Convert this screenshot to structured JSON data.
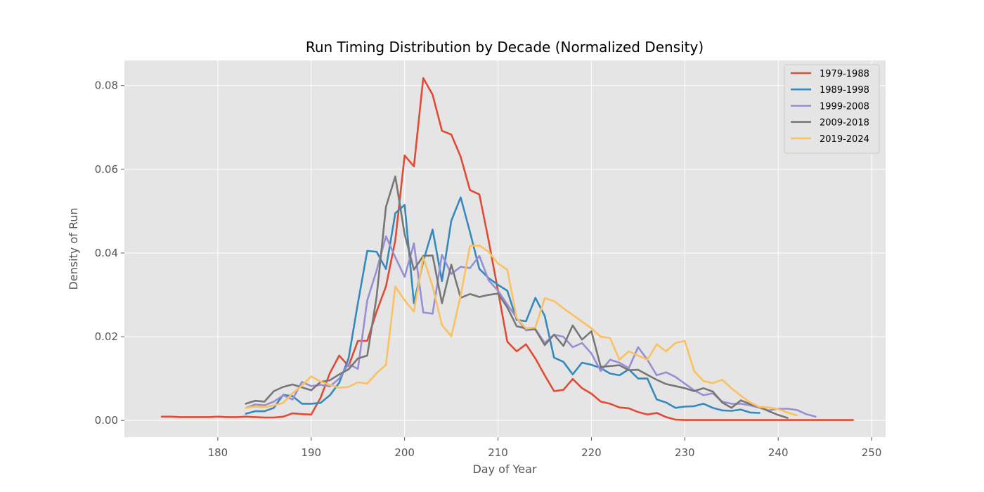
{
  "chart_data": {
    "type": "line",
    "title": "Run Timing Distribution by Decade (Normalized Density)",
    "xlabel": "Day of Year",
    "ylabel": "Density of Run",
    "xlim": [
      170,
      251.5
    ],
    "ylim": [
      -0.004,
      0.086
    ],
    "xticks": [
      180,
      190,
      200,
      210,
      220,
      230,
      240,
      250
    ],
    "yticks": [
      0.0,
      0.02,
      0.04,
      0.06,
      0.08
    ],
    "ytick_labels": [
      "0.00",
      "0.02",
      "0.04",
      "0.06",
      "0.08"
    ],
    "grid": true,
    "legend_position": "top-right",
    "series": [
      {
        "name": "1979-1988",
        "color": "#E24A33",
        "x": [
          174,
          175,
          176,
          177,
          178,
          179,
          180,
          181,
          182,
          183,
          184,
          185,
          186,
          187,
          188,
          189,
          190,
          191,
          192,
          193,
          194,
          195,
          196,
          197,
          198,
          199,
          200,
          201,
          202,
          203,
          204,
          205,
          206,
          207,
          208,
          209,
          210,
          211,
          212,
          213,
          214,
          215,
          216,
          217,
          218,
          219,
          220,
          221,
          222,
          223,
          224,
          225,
          226,
          227,
          228,
          229,
          230,
          231,
          232,
          233,
          234,
          235,
          236,
          237,
          238,
          239,
          240,
          241,
          242,
          243,
          244,
          245,
          246,
          247,
          248
        ],
        "y": [
          0.0009,
          0.0009,
          0.0008,
          0.0008,
          0.0008,
          0.0008,
          0.0009,
          0.0008,
          0.0008,
          0.0009,
          0.0008,
          0.0007,
          0.0007,
          0.0009,
          0.0017,
          0.0015,
          0.0014,
          0.0054,
          0.0113,
          0.0155,
          0.013,
          0.019,
          0.019,
          0.026,
          0.032,
          0.043,
          0.0633,
          0.0607,
          0.0818,
          0.0778,
          0.0692,
          0.0683,
          0.063,
          0.055,
          0.054,
          0.043,
          0.031,
          0.0188,
          0.0165,
          0.0182,
          0.0148,
          0.0108,
          0.007,
          0.0073,
          0.0099,
          0.0077,
          0.0064,
          0.0045,
          0.004,
          0.0031,
          0.0029,
          0.002,
          0.0014,
          0.0018,
          0.0008,
          0.0002,
          0.0001,
          0.0001,
          0.0001,
          0.0001,
          0.0001,
          0.0001,
          0.0001,
          0.0001,
          0.0001,
          0.0001,
          0.0001,
          0.0001,
          0.0001,
          0.0001,
          0.0001,
          0.0001,
          0.0001,
          0.0001,
          0.0001
        ]
      },
      {
        "name": "1989-1998",
        "color": "#348ABD",
        "x": [
          183,
          184,
          185,
          186,
          187,
          188,
          189,
          190,
          191,
          192,
          193,
          194,
          195,
          196,
          197,
          198,
          199,
          200,
          201,
          202,
          203,
          204,
          205,
          206,
          207,
          208,
          209,
          210,
          211,
          212,
          213,
          214,
          215,
          216,
          217,
          218,
          219,
          220,
          221,
          222,
          223,
          224,
          225,
          226,
          227,
          228,
          229,
          230,
          231,
          232,
          233,
          234,
          235,
          236,
          237,
          238
        ],
        "y": [
          0.0016,
          0.0022,
          0.0022,
          0.003,
          0.0061,
          0.0058,
          0.004,
          0.004,
          0.0042,
          0.006,
          0.009,
          0.0148,
          0.028,
          0.0405,
          0.0403,
          0.0362,
          0.0495,
          0.0515,
          0.028,
          0.038,
          0.0456,
          0.0333,
          0.0477,
          0.0533,
          0.045,
          0.0362,
          0.034,
          0.0324,
          0.031,
          0.024,
          0.0237,
          0.0293,
          0.025,
          0.015,
          0.014,
          0.011,
          0.0138,
          0.0133,
          0.0125,
          0.0112,
          0.0108,
          0.0122,
          0.01,
          0.01,
          0.005,
          0.0043,
          0.003,
          0.0033,
          0.0034,
          0.004,
          0.003,
          0.0024,
          0.0023,
          0.0026,
          0.0019,
          0.0018
        ]
      },
      {
        "name": "1999-2008",
        "color": "#988ED5",
        "x": [
          183,
          184,
          185,
          186,
          187,
          188,
          189,
          190,
          191,
          192,
          193,
          194,
          195,
          196,
          197,
          198,
          199,
          200,
          201,
          202,
          203,
          204,
          205,
          206,
          207,
          208,
          209,
          210,
          211,
          212,
          213,
          214,
          215,
          216,
          217,
          218,
          219,
          220,
          221,
          222,
          223,
          224,
          225,
          226,
          227,
          228,
          229,
          230,
          231,
          232,
          233,
          234,
          235,
          236,
          237,
          238,
          239,
          240,
          241,
          242,
          243,
          244
        ],
        "y": [
          0.003,
          0.0038,
          0.0036,
          0.0045,
          0.006,
          0.005,
          0.0092,
          0.0082,
          0.0085,
          0.0081,
          0.01,
          0.0135,
          0.0123,
          0.0287,
          0.0358,
          0.044,
          0.039,
          0.0343,
          0.0423,
          0.0258,
          0.0255,
          0.0396,
          0.035,
          0.0367,
          0.0364,
          0.0393,
          0.0335,
          0.031,
          0.0277,
          0.0245,
          0.0215,
          0.0218,
          0.0185,
          0.0205,
          0.02,
          0.0175,
          0.0185,
          0.016,
          0.0118,
          0.0145,
          0.0138,
          0.0125,
          0.0175,
          0.0145,
          0.0108,
          0.0115,
          0.0104,
          0.0088,
          0.0072,
          0.006,
          0.0065,
          0.0045,
          0.004,
          0.004,
          0.0036,
          0.003,
          0.0024,
          0.0028,
          0.0028,
          0.0025,
          0.0015,
          0.0009
        ]
      },
      {
        "name": "2009-2018",
        "color": "#777777",
        "x": [
          183,
          184,
          185,
          186,
          187,
          188,
          189,
          190,
          191,
          192,
          193,
          194,
          195,
          196,
          197,
          198,
          199,
          200,
          201,
          202,
          203,
          204,
          205,
          206,
          207,
          208,
          209,
          210,
          211,
          212,
          213,
          214,
          215,
          216,
          217,
          218,
          219,
          220,
          221,
          222,
          223,
          224,
          225,
          226,
          227,
          228,
          229,
          230,
          231,
          232,
          233,
          234,
          235,
          236,
          237,
          238,
          239,
          240,
          241
        ],
        "y": [
          0.004,
          0.0047,
          0.0045,
          0.007,
          0.008,
          0.0086,
          0.0079,
          0.0072,
          0.0092,
          0.0096,
          0.011,
          0.0122,
          0.0148,
          0.0155,
          0.0295,
          0.051,
          0.0583,
          0.0445,
          0.036,
          0.0393,
          0.0394,
          0.028,
          0.0372,
          0.0293,
          0.0302,
          0.0295,
          0.03,
          0.0303,
          0.027,
          0.0225,
          0.022,
          0.0217,
          0.018,
          0.0205,
          0.0178,
          0.0227,
          0.0193,
          0.0213,
          0.0128,
          0.013,
          0.0132,
          0.012,
          0.0121,
          0.0109,
          0.0097,
          0.0087,
          0.0082,
          0.0077,
          0.007,
          0.0077,
          0.0069,
          0.0043,
          0.003,
          0.0048,
          0.0039,
          0.0032,
          0.0022,
          0.0013,
          0.0006
        ]
      },
      {
        "name": "2019-2024",
        "color": "#FBC15E",
        "x": [
          183,
          184,
          185,
          186,
          187,
          188,
          189,
          190,
          191,
          192,
          193,
          194,
          195,
          196,
          197,
          198,
          199,
          200,
          201,
          202,
          203,
          204,
          205,
          206,
          207,
          208,
          209,
          210,
          211,
          212,
          213,
          214,
          215,
          216,
          217,
          218,
          219,
          220,
          221,
          222,
          223,
          224,
          225,
          226,
          227,
          228,
          229,
          230,
          231,
          232,
          233,
          234,
          235,
          236,
          237,
          238,
          239,
          240,
          241,
          242
        ],
        "y": [
          0.003,
          0.0033,
          0.0031,
          0.0036,
          0.0042,
          0.0065,
          0.0083,
          0.0105,
          0.0093,
          0.0085,
          0.0078,
          0.008,
          0.0091,
          0.0088,
          0.0113,
          0.0133,
          0.032,
          0.0287,
          0.026,
          0.039,
          0.032,
          0.0228,
          0.0201,
          0.0298,
          0.0417,
          0.0418,
          0.0403,
          0.0375,
          0.036,
          0.0245,
          0.022,
          0.0222,
          0.0292,
          0.0285,
          0.0268,
          0.0252,
          0.0236,
          0.022,
          0.02,
          0.0197,
          0.0145,
          0.0165,
          0.0155,
          0.0145,
          0.0182,
          0.0165,
          0.0185,
          0.019,
          0.0118,
          0.0094,
          0.0089,
          0.0097,
          0.0077,
          0.0059,
          0.0043,
          0.0032,
          0.0031,
          0.0027,
          0.0019,
          0.0012
        ]
      }
    ]
  }
}
